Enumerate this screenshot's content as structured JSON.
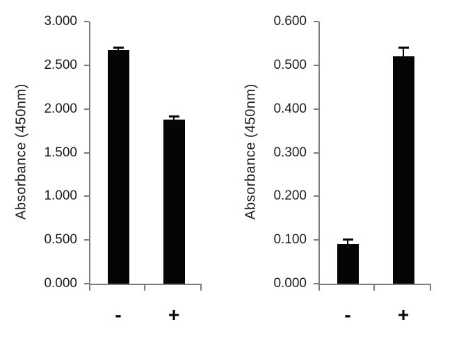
{
  "figure": {
    "background": "#ffffff",
    "bar_color": "#050505",
    "axis_color": "#7c7c7c",
    "text_color": "#1c1c1c"
  },
  "chart_data": [
    {
      "type": "bar",
      "title": "",
      "xlabel": "",
      "ylabel": "Absorbance (450nm)",
      "ylim": [
        0,
        3.0
      ],
      "ytick_labels": [
        "3.000",
        "2.500",
        "2.000",
        "1.500",
        "1.000",
        "0.500",
        "0.000"
      ],
      "categories": [
        "-",
        "+"
      ],
      "values": [
        2.67,
        1.88
      ],
      "errors": [
        0.03,
        0.03
      ],
      "grid": false,
      "legend": "none",
      "bar_fill": "black",
      "error_bars": "upper cap"
    },
    {
      "type": "bar",
      "title": "",
      "xlabel": "",
      "ylabel": "Absorbance (450nm)",
      "ylim": [
        0,
        0.6
      ],
      "ytick_labels": [
        "0.600",
        "0.500",
        "0.400",
        "0.300",
        "0.200",
        "0.100",
        "0.000"
      ],
      "categories": [
        "-",
        "+"
      ],
      "values": [
        0.09,
        0.52
      ],
      "errors": [
        0.01,
        0.02
      ],
      "grid": false,
      "legend": "none",
      "bar_fill": "black",
      "error_bars": "upper cap"
    }
  ]
}
